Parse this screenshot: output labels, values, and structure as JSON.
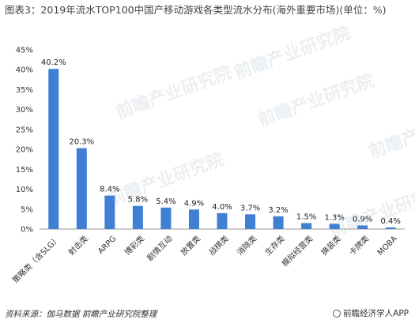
{
  "title": "图表3：2019年流水TOP100中国产移动游戏各类型流水分布(海外重要市场)(单位：%)",
  "source": "资料来源：伽马数据 前瞻产业研究院整理",
  "brand": "前瞻经济学人APP",
  "watermark": "前瞻产业研究院",
  "chart_data": {
    "type": "bar",
    "title": "图表3：2019年流水TOP100中国产移动游戏各类型流水分布(海外重要市场)(单位：%)",
    "categories": [
      "策略类（含SLG）",
      "射击类",
      "ARPG",
      "博彩类",
      "剧情互动",
      "放置类",
      "战棋类",
      "消除类",
      "生存类",
      "模拟经营类",
      "换装类",
      "卡牌类",
      "MOBA"
    ],
    "values": [
      40.2,
      20.3,
      8.4,
      5.8,
      5.4,
      4.9,
      4.0,
      3.7,
      3.2,
      1.5,
      1.3,
      0.9,
      0.4
    ],
    "data_labels": [
      "40.2%",
      "20.3%",
      "8.4%",
      "5.8%",
      "5.4%",
      "4.9%",
      "4.0%",
      "3.7%",
      "3.2%",
      "1.5%",
      "1.3%",
      "0.9%",
      "0.4%"
    ],
    "yticks": [
      "0%",
      "5%",
      "10%",
      "15%",
      "20%",
      "25%",
      "30%",
      "35%",
      "40%",
      "45%"
    ],
    "ylim": [
      0,
      45
    ],
    "xlabel": "",
    "ylabel": "",
    "grid": false,
    "color": "#3f7fd4"
  }
}
